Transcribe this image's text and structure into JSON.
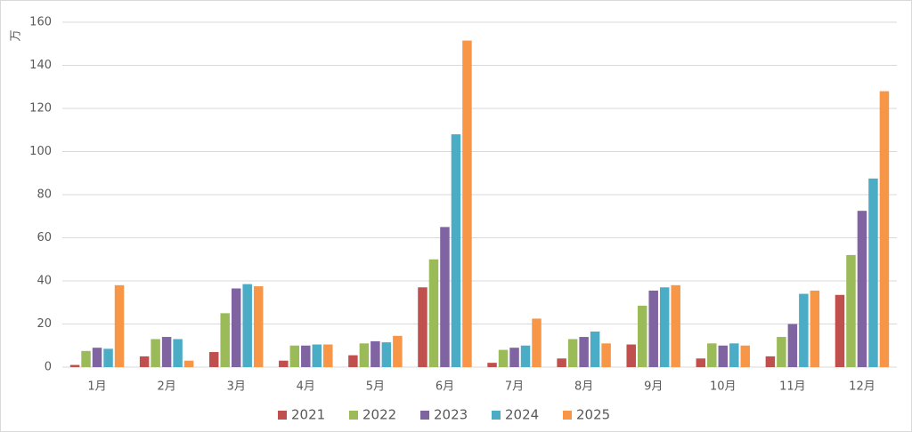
{
  "chart_data": {
    "type": "bar",
    "y_label": "万",
    "categories": [
      "1月",
      "2月",
      "3月",
      "4月",
      "5月",
      "6月",
      "7月",
      "8月",
      "9月",
      "10月",
      "11月",
      "12月"
    ],
    "series": [
      {
        "name": "2021",
        "color": "#c0504d",
        "values": [
          1,
          5,
          7,
          3,
          5.5,
          37,
          2,
          4,
          10.5,
          4,
          5,
          33.5
        ]
      },
      {
        "name": "2022",
        "color": "#9bbb59",
        "values": [
          7.5,
          13,
          25,
          10,
          11,
          50,
          8,
          13,
          28.5,
          11,
          14,
          52
        ]
      },
      {
        "name": "2023",
        "color": "#8064a2",
        "values": [
          9,
          14,
          36.5,
          10,
          12,
          65,
          9,
          14,
          35.5,
          10,
          20,
          72.5
        ]
      },
      {
        "name": "2024",
        "color": "#4bacc6",
        "values": [
          8.5,
          13,
          38.5,
          10.5,
          11.5,
          108,
          10,
          16.5,
          37,
          11,
          34,
          87.5
        ]
      },
      {
        "name": "2025",
        "color": "#f79646",
        "values": [
          38,
          3,
          37.5,
          10.5,
          14.5,
          151.5,
          22.5,
          11,
          38,
          10,
          35.5,
          128
        ]
      }
    ],
    "ylim": [
      0,
      160
    ],
    "yticks": [
      0,
      20,
      40,
      60,
      80,
      100,
      120,
      140,
      160
    ],
    "grid": true,
    "legend": "bottom"
  }
}
